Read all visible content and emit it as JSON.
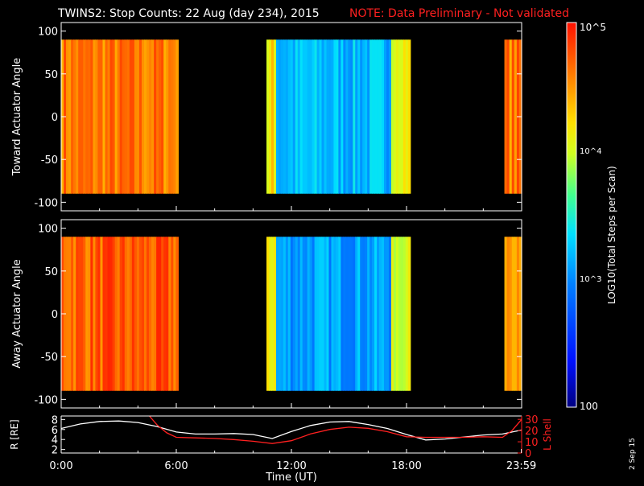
{
  "title": {
    "main": "TWINS2: Stop Counts: 22 Aug (day 234), 2015",
    "note": "NOTE: Data Preliminary - Not validated"
  },
  "colors": {
    "background": "#000000",
    "axes": "#ffffff",
    "note": "#ff2020",
    "r_line": "#ffffff",
    "lshell_line": "#ff2020"
  },
  "colorbar": {
    "label": "LOG10(Total Steps per Scan)",
    "ticks": [
      "10^5",
      "10^4",
      "10^3",
      "100"
    ],
    "range": [
      100,
      100000
    ],
    "scale": "log",
    "colormap": "rainbow (blue low, red high)"
  },
  "date_stamp": "2 Sep 15",
  "chart_data": [
    {
      "type": "heatmap",
      "panel": "top",
      "ylabel": "Toward Actuator Angle",
      "ylim": [
        -110,
        110
      ],
      "yticks": [
        100,
        50,
        0,
        -50,
        -100
      ],
      "xlim": [
        0,
        24
      ],
      "data_segments_hours": [
        [
          0,
          6.1
        ],
        [
          10.7,
          18.2
        ],
        [
          23.1,
          24
        ]
      ],
      "segment_mean_log": [
        4.6,
        3.2,
        4.6
      ],
      "angle_range": [
        -90,
        90
      ]
    },
    {
      "type": "heatmap",
      "panel": "middle",
      "ylabel": "Away Actuator Angle",
      "ylim": [
        -110,
        110
      ],
      "yticks": [
        100,
        50,
        0,
        -50,
        -100
      ],
      "xlim": [
        0,
        24
      ],
      "data_segments_hours": [
        [
          0,
          6.1
        ],
        [
          10.7,
          18.2
        ],
        [
          23.1,
          24
        ]
      ],
      "segment_mean_log": [
        4.7,
        3.1,
        4.6
      ],
      "angle_range": [
        -90,
        90
      ]
    },
    {
      "type": "line",
      "panel": "bottom",
      "ylabel_left": "R [RE]",
      "ylabel_right": "L Shell",
      "yticks_left": [
        8,
        6,
        4,
        2
      ],
      "yticks_right": [
        30,
        20,
        10,
        0
      ],
      "ylim_left": [
        1.3,
        8.7
      ],
      "ylim_right": [
        0,
        33
      ],
      "xlabel": "Time (UT)",
      "xticks": [
        "0:00",
        "6:00",
        "12:00",
        "18:00",
        "23:59"
      ],
      "series": [
        {
          "name": "R",
          "x": [
            0,
            1,
            2,
            3,
            4,
            5,
            6,
            7,
            8,
            9,
            10,
            11,
            12,
            13,
            14,
            15,
            16,
            17,
            18,
            19,
            20,
            21,
            22,
            23,
            24
          ],
          "y": [
            6.2,
            7.1,
            7.6,
            7.7,
            7.4,
            6.6,
            5.5,
            5.1,
            5.1,
            5.2,
            5.0,
            4.2,
            5.6,
            6.8,
            7.5,
            7.6,
            7.0,
            6.2,
            5.0,
            3.9,
            4.1,
            4.5,
            4.9,
            5.1,
            5.9
          ]
        },
        {
          "name": "L Shell",
          "x": [
            4.6,
            5.0,
            5.5,
            6.0,
            7,
            8,
            9,
            10,
            11,
            12,
            13,
            14,
            15,
            16,
            17,
            18,
            19,
            20,
            21,
            22,
            23,
            23.5,
            24
          ],
          "y": [
            33,
            25,
            18,
            14,
            13.5,
            13,
            12,
            10.5,
            8.5,
            11,
            17,
            21,
            23,
            22,
            19,
            14.5,
            14,
            14,
            14,
            14.5,
            14,
            20,
            30
          ]
        }
      ]
    }
  ]
}
